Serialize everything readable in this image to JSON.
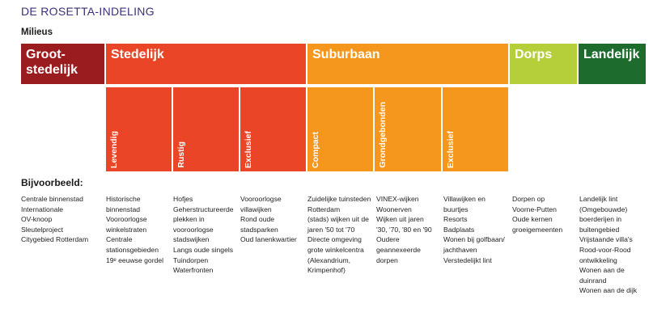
{
  "title": "DE ROSETTA-INDELING",
  "subtitle": "Milieus",
  "colors": {
    "grootstedelijk": "#9a1c1f",
    "stedelijk": "#ea4526",
    "suburbaan": "#f5961d",
    "dorps": "#b4cf3a",
    "landelijk": "#1e6b2e"
  },
  "categories": [
    {
      "id": "grootstedelijk",
      "lines": [
        "Groot-",
        "stedelijk"
      ]
    },
    {
      "id": "stedelijk",
      "lines": [
        "Stedelijk"
      ]
    },
    {
      "id": "suburbaan",
      "lines": [
        "Suburbaan"
      ]
    },
    {
      "id": "dorps",
      "lines": [
        "Dorps"
      ]
    },
    {
      "id": "landelijk",
      "lines": [
        "Landelijk"
      ]
    }
  ],
  "subcategories": [
    "Levendig",
    "Rustig",
    "Exclusief",
    "Compact",
    "Grondgebonden",
    "Exclusief"
  ],
  "examples_heading": "Bijvoorbeeld:",
  "examples": [
    [
      "Centrale binnenstad",
      "Internationale",
      "OV-knoop",
      "Sleutelproject",
      "Citygebied Rotterdam"
    ],
    [
      "Historische",
      "binnenstad",
      "Vooroorlogse",
      "winkelstraten",
      "Centrale",
      "stationsgebieden",
      "19ᵉ eeuwse gordel"
    ],
    [
      "Hofjes",
      "Geherstructureerde",
      "plekken in",
      "vooroorlogse",
      "stadswijken",
      "Langs oude singels",
      "Tuindorpen",
      "Waterfronten"
    ],
    [
      "Vooroorlogse",
      "villawijken",
      "Rond oude",
      "stadsparken",
      "Oud lanenkwartier"
    ],
    [
      "Zuidelijke tuinsteden",
      "Rotterdam",
      "(stads) wijken uit de",
      "jaren '50 tot '70",
      "Directe omgeving",
      "grote winkelcentra",
      "(Alexandrium,",
      "Krimpenhof)"
    ],
    [
      "VINEX-wijken",
      "Woonerven",
      "Wijken uit jaren",
      "'30, '70, '80 en '90",
      "Oudere",
      "geannexeerde",
      "dorpen"
    ],
    [
      "Villawijken en",
      "buurtjes",
      "Resorts",
      "Badplaats",
      "Wonen bij golfbaan/",
      "jachthaven",
      "Verstedelijkt lint"
    ],
    [
      "Dorpen op",
      "Voorne-Putten",
      "Oude kernen",
      "groeigemeenten"
    ],
    [
      "Landelijk lint",
      "(Omgebouwde)",
      "boerderijen in",
      "buitengebied",
      "Vrijstaande villa's",
      "Rood-voor-Rood",
      "ontwikkeling",
      "Wonen aan de",
      "duinrand",
      "Wonen aan de dijk"
    ]
  ]
}
